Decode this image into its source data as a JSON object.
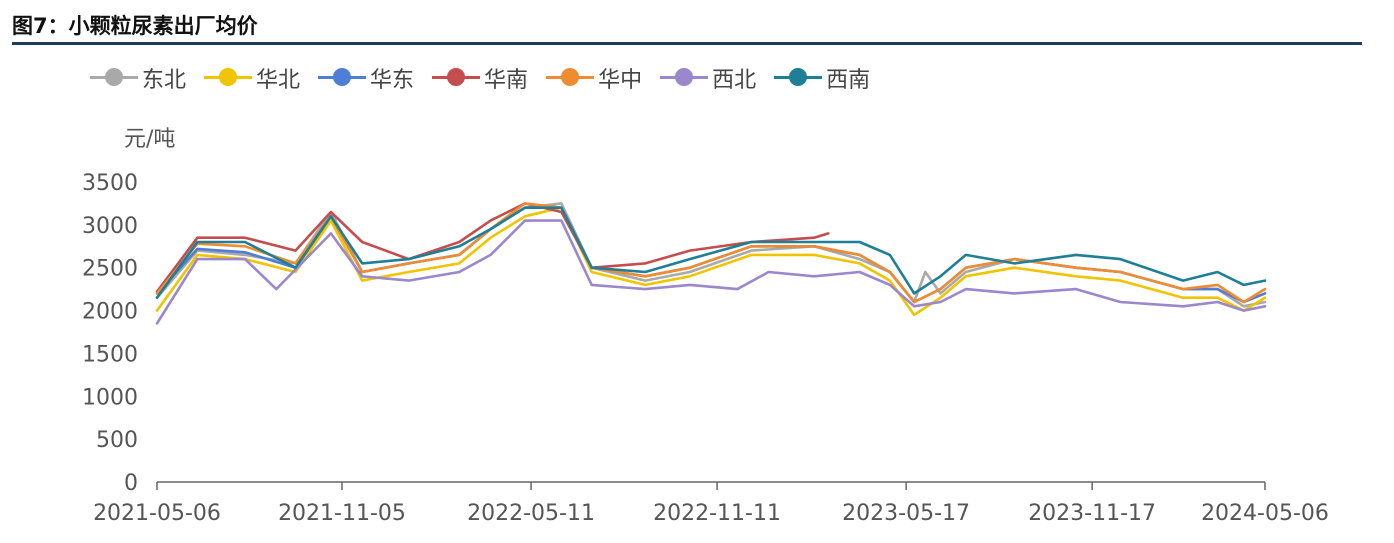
{
  "page": {
    "title": "图7：小颗粒尿素出厂均价"
  },
  "chart_data": {
    "type": "line",
    "title": "图7：小颗粒尿素出厂均价",
    "ylabel": "元/吨",
    "ylim": [
      0,
      3500
    ],
    "y_ticks": [
      "0",
      "500",
      "1000",
      "1500",
      "2000",
      "2500",
      "3000",
      "3500"
    ],
    "x_ticks": [
      "2021-05-06",
      "2021-11-05",
      "2022-05-11",
      "2022-11-11",
      "2023-05-17",
      "2023-11-17",
      "2024-05-06"
    ],
    "x_range": [
      "2021-05-06",
      "2024-05-06"
    ],
    "legend_position": "top-left",
    "grid": false,
    "series": [
      {
        "name": "东北",
        "color": "#a9a9a9",
        "points": [
          [
            "2021-05-06",
            2150
          ],
          [
            "2021-06-15",
            2700
          ],
          [
            "2021-08-01",
            2650
          ],
          [
            "2021-09-20",
            2550
          ],
          [
            "2021-10-25",
            3150
          ],
          [
            "2021-11-25",
            2450
          ],
          [
            "2022-01-10",
            2550
          ],
          [
            "2022-03-01",
            2650
          ],
          [
            "2022-04-01",
            2950
          ],
          [
            "2022-05-05",
            3200
          ],
          [
            "2022-06-10",
            3250
          ],
          [
            "2022-07-10",
            2500
          ],
          [
            "2022-09-01",
            2350
          ],
          [
            "2022-10-15",
            2450
          ],
          [
            "2022-12-15",
            2700
          ],
          [
            "2023-02-15",
            2750
          ],
          [
            "2023-04-01",
            2600
          ],
          [
            "2023-05-01",
            2450
          ],
          [
            "2023-05-25",
            2100
          ],
          [
            "2023-06-05",
            2450
          ],
          [
            "2023-06-20",
            2200
          ],
          [
            "2023-07-15",
            2450
          ],
          [
            "2023-09-01",
            2600
          ],
          [
            "2023-11-01",
            2500
          ],
          [
            "2023-12-15",
            2450
          ],
          [
            "2024-02-15",
            2250
          ],
          [
            "2024-03-20",
            2250
          ],
          [
            "2024-04-15",
            2050
          ],
          [
            "2024-05-06",
            2100
          ]
        ]
      },
      {
        "name": "华北",
        "color": "#f0c400",
        "points": [
          [
            "2021-05-06",
            2000
          ],
          [
            "2021-06-15",
            2650
          ],
          [
            "2021-08-01",
            2600
          ],
          [
            "2021-09-20",
            2450
          ],
          [
            "2021-10-25",
            3050
          ],
          [
            "2021-11-25",
            2350
          ],
          [
            "2022-01-10",
            2450
          ],
          [
            "2022-03-01",
            2550
          ],
          [
            "2022-04-01",
            2850
          ],
          [
            "2022-05-05",
            3100
          ],
          [
            "2022-06-10",
            3200
          ],
          [
            "2022-07-10",
            2450
          ],
          [
            "2022-09-01",
            2300
          ],
          [
            "2022-10-15",
            2400
          ],
          [
            "2022-12-15",
            2650
          ],
          [
            "2023-02-15",
            2650
          ],
          [
            "2023-04-01",
            2550
          ],
          [
            "2023-05-01",
            2350
          ],
          [
            "2023-05-25",
            1950
          ],
          [
            "2023-06-20",
            2150
          ],
          [
            "2023-07-15",
            2400
          ],
          [
            "2023-09-01",
            2500
          ],
          [
            "2023-11-01",
            2400
          ],
          [
            "2023-12-15",
            2350
          ],
          [
            "2024-02-15",
            2150
          ],
          [
            "2024-03-20",
            2150
          ],
          [
            "2024-04-15",
            2000
          ],
          [
            "2024-05-06",
            2150
          ]
        ]
      },
      {
        "name": "华东",
        "color": "#4f7fd4",
        "points": [
          [
            "2021-05-06",
            2200
          ],
          [
            "2021-06-15",
            2720
          ],
          [
            "2021-08-01",
            2680
          ],
          [
            "2021-09-20",
            2500
          ],
          [
            "2021-10-25",
            3100
          ],
          [
            "2021-11-25",
            2450
          ],
          [
            "2022-01-10",
            2550
          ],
          [
            "2022-03-01",
            2650
          ],
          [
            "2022-04-01",
            2950
          ],
          [
            "2022-05-05",
            3200
          ],
          [
            "2022-06-10",
            3200
          ],
          [
            "2022-07-10",
            2500
          ],
          [
            "2022-09-01",
            2400
          ],
          [
            "2022-10-15",
            2500
          ],
          [
            "2022-12-15",
            2750
          ],
          [
            "2023-02-15",
            2750
          ],
          [
            "2023-04-01",
            2650
          ],
          [
            "2023-05-01",
            2450
          ],
          [
            "2023-05-25",
            2100
          ],
          [
            "2023-06-20",
            2250
          ],
          [
            "2023-07-15",
            2500
          ],
          [
            "2023-09-01",
            2600
          ],
          [
            "2023-11-01",
            2500
          ],
          [
            "2023-12-15",
            2450
          ],
          [
            "2024-02-15",
            2250
          ],
          [
            "2024-03-20",
            2250
          ],
          [
            "2024-04-15",
            2100
          ],
          [
            "2024-05-06",
            2200
          ]
        ]
      },
      {
        "name": "华南",
        "color": "#c44e4e",
        "points": [
          [
            "2021-05-06",
            2220
          ],
          [
            "2021-06-15",
            2850
          ],
          [
            "2021-08-01",
            2850
          ],
          [
            "2021-09-20",
            2700
          ],
          [
            "2021-10-25",
            3150
          ],
          [
            "2021-11-25",
            2800
          ],
          [
            "2022-01-10",
            2600
          ],
          [
            "2022-03-01",
            2800
          ],
          [
            "2022-04-01",
            3050
          ],
          [
            "2022-05-05",
            3250
          ],
          [
            "2022-06-10",
            3150
          ],
          [
            "2022-07-10",
            2500
          ],
          [
            "2022-09-01",
            2550
          ],
          [
            "2022-10-15",
            2700
          ],
          [
            "2022-12-15",
            2800
          ],
          [
            "2023-02-15",
            2850
          ],
          [
            "2023-03-01",
            2900
          ]
        ]
      },
      {
        "name": "华中",
        "color": "#f08c30",
        "points": [
          [
            "2021-05-06",
            2200
          ],
          [
            "2021-06-15",
            2780
          ],
          [
            "2021-08-01",
            2750
          ],
          [
            "2021-09-20",
            2550
          ],
          [
            "2021-10-25",
            3100
          ],
          [
            "2021-11-25",
            2450
          ],
          [
            "2022-01-10",
            2550
          ],
          [
            "2022-03-01",
            2650
          ],
          [
            "2022-04-01",
            2950
          ],
          [
            "2022-05-05",
            3250
          ],
          [
            "2022-06-10",
            3200
          ],
          [
            "2022-07-10",
            2500
          ],
          [
            "2022-09-01",
            2400
          ],
          [
            "2022-10-15",
            2500
          ],
          [
            "2022-12-15",
            2750
          ],
          [
            "2023-02-15",
            2750
          ],
          [
            "2023-04-01",
            2650
          ],
          [
            "2023-05-01",
            2450
          ],
          [
            "2023-05-25",
            2100
          ],
          [
            "2023-06-20",
            2250
          ],
          [
            "2023-07-15",
            2500
          ],
          [
            "2023-09-01",
            2600
          ],
          [
            "2023-11-01",
            2500
          ],
          [
            "2023-12-15",
            2450
          ],
          [
            "2024-02-15",
            2250
          ],
          [
            "2024-03-20",
            2300
          ],
          [
            "2024-04-15",
            2100
          ],
          [
            "2024-05-06",
            2250
          ]
        ]
      },
      {
        "name": "西北",
        "color": "#9b87cc",
        "points": [
          [
            "2021-05-06",
            1850
          ],
          [
            "2021-06-15",
            2600
          ],
          [
            "2021-08-01",
            2600
          ],
          [
            "2021-09-01",
            2250
          ],
          [
            "2021-10-25",
            2900
          ],
          [
            "2021-11-25",
            2400
          ],
          [
            "2022-01-10",
            2350
          ],
          [
            "2022-03-01",
            2450
          ],
          [
            "2022-04-01",
            2650
          ],
          [
            "2022-05-05",
            3050
          ],
          [
            "2022-06-10",
            3050
          ],
          [
            "2022-07-10",
            2300
          ],
          [
            "2022-09-01",
            2250
          ],
          [
            "2022-10-15",
            2300
          ],
          [
            "2022-12-01",
            2250
          ],
          [
            "2023-01-01",
            2450
          ],
          [
            "2023-02-15",
            2400
          ],
          [
            "2023-04-01",
            2450
          ],
          [
            "2023-05-01",
            2300
          ],
          [
            "2023-05-25",
            2050
          ],
          [
            "2023-06-20",
            2100
          ],
          [
            "2023-07-15",
            2250
          ],
          [
            "2023-09-01",
            2200
          ],
          [
            "2023-11-01",
            2250
          ],
          [
            "2023-12-15",
            2100
          ],
          [
            "2024-02-15",
            2050
          ],
          [
            "2024-03-20",
            2100
          ],
          [
            "2024-04-15",
            2000
          ],
          [
            "2024-05-06",
            2050
          ]
        ]
      },
      {
        "name": "西南",
        "color": "#1e7f96",
        "points": [
          [
            "2021-05-06",
            2150
          ],
          [
            "2021-06-15",
            2800
          ],
          [
            "2021-08-01",
            2800
          ],
          [
            "2021-09-20",
            2500
          ],
          [
            "2021-10-25",
            3100
          ],
          [
            "2021-11-25",
            2550
          ],
          [
            "2022-01-10",
            2600
          ],
          [
            "2022-03-01",
            2750
          ],
          [
            "2022-04-01",
            2950
          ],
          [
            "2022-05-05",
            3200
          ],
          [
            "2022-06-10",
            3200
          ],
          [
            "2022-07-10",
            2500
          ],
          [
            "2022-09-01",
            2450
          ],
          [
            "2022-10-15",
            2600
          ],
          [
            "2022-12-15",
            2800
          ],
          [
            "2023-02-15",
            2800
          ],
          [
            "2023-04-01",
            2800
          ],
          [
            "2023-05-01",
            2650
          ],
          [
            "2023-05-25",
            2200
          ],
          [
            "2023-06-20",
            2400
          ],
          [
            "2023-07-15",
            2650
          ],
          [
            "2023-09-01",
            2550
          ],
          [
            "2023-11-01",
            2650
          ],
          [
            "2023-12-15",
            2600
          ],
          [
            "2024-02-15",
            2350
          ],
          [
            "2024-03-20",
            2450
          ],
          [
            "2024-04-15",
            2300
          ],
          [
            "2024-05-06",
            2350
          ]
        ]
      }
    ]
  }
}
